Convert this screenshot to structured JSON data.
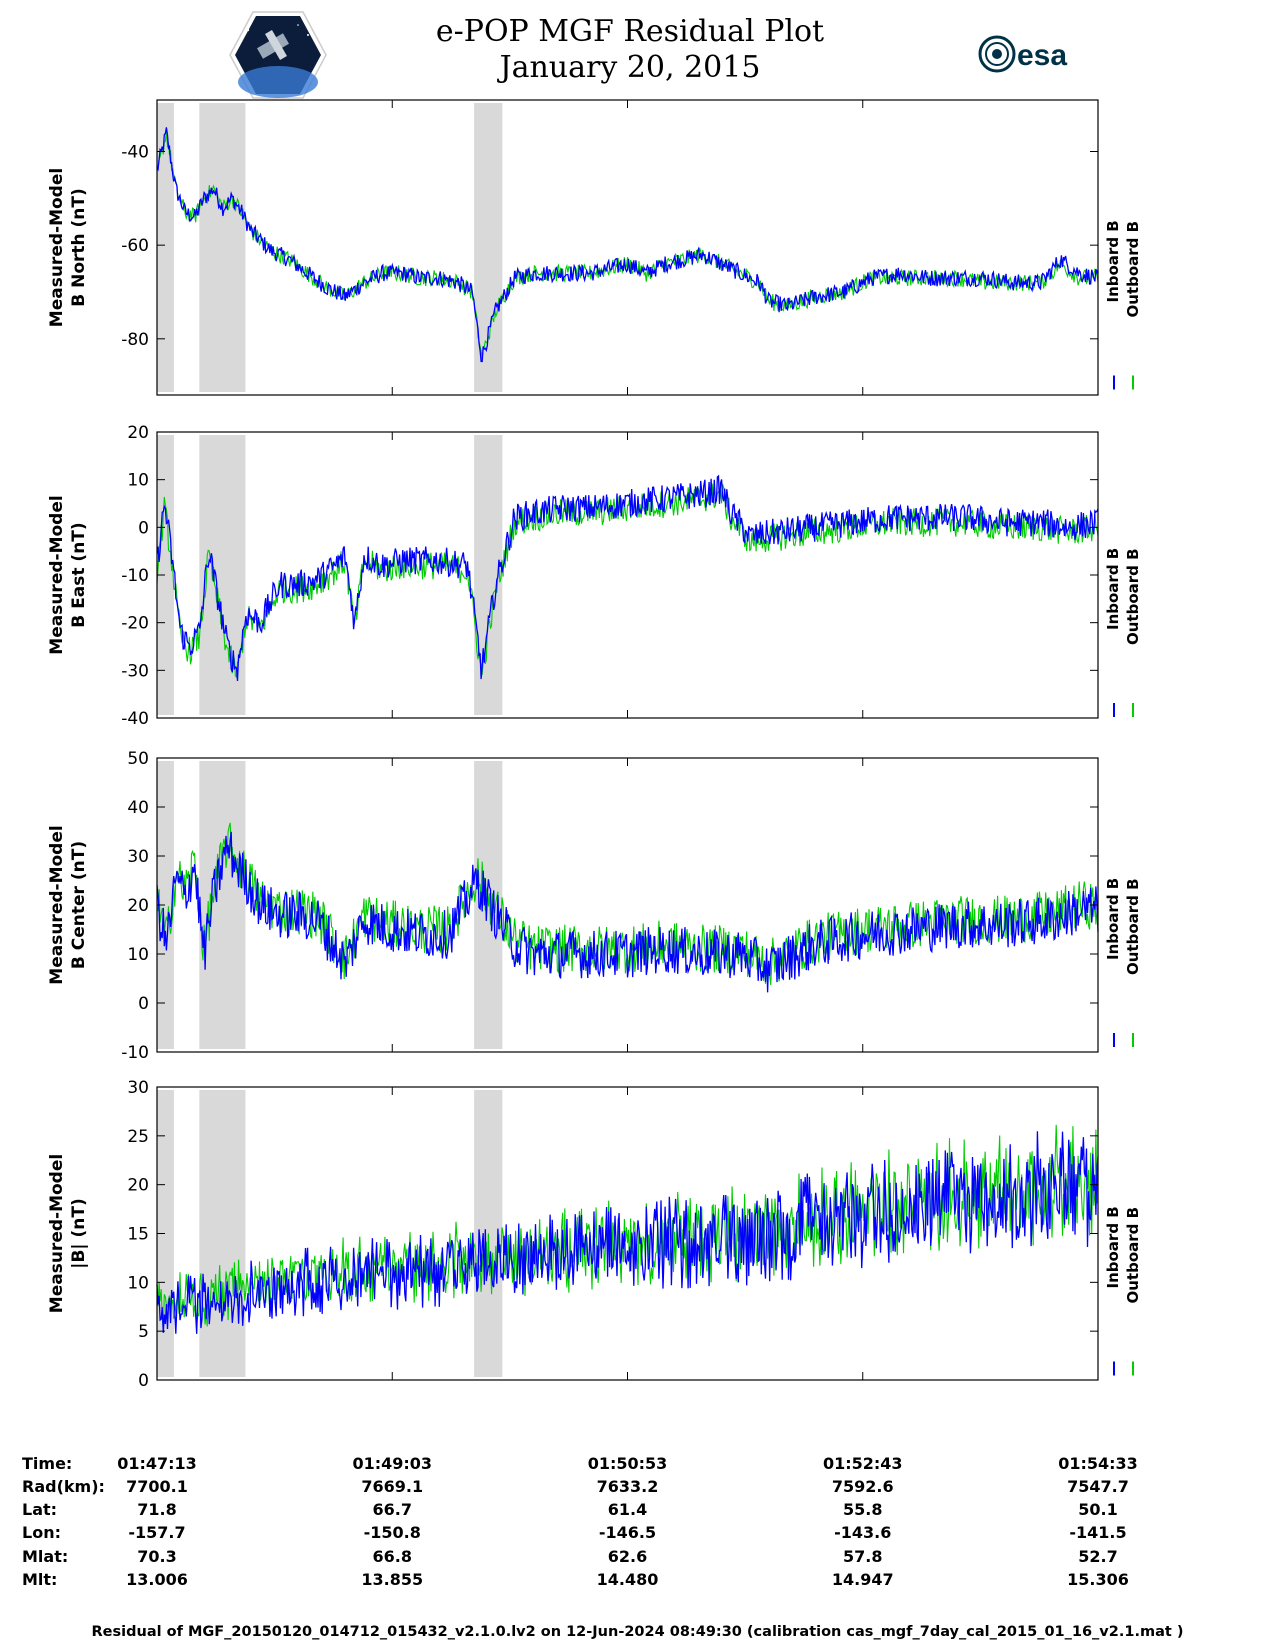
{
  "header": {
    "title_line1": "e-POP MGF Residual Plot",
    "title_line2": "January 20, 2015",
    "logo_left": "cassiope-mission-patch",
    "logo_right_text": "esa"
  },
  "legend": {
    "inboard": "Inboard B",
    "outboard": "Outboard B"
  },
  "colors": {
    "inboard": "#0000ff",
    "outboard": "#00cc00",
    "shade": "#d9d9d9"
  },
  "chart_data": [
    {
      "type": "line",
      "ylabel": [
        "Measured-Model",
        "B North (nT)"
      ],
      "ylim": [
        -92,
        -29
      ],
      "yticks": [
        -80,
        -60,
        -40
      ],
      "shaded_x": [
        [
          0,
          0.018
        ],
        [
          0.045,
          0.094
        ],
        [
          0.337,
          0.367
        ]
      ],
      "series": [
        {
          "name": "Inboard B",
          "x": [
            0.0,
            0.01,
            0.02,
            0.03,
            0.04,
            0.05,
            0.06,
            0.07,
            0.08,
            0.09,
            0.1,
            0.12,
            0.14,
            0.16,
            0.18,
            0.2,
            0.22,
            0.24,
            0.26,
            0.28,
            0.3,
            0.32,
            0.335,
            0.345,
            0.36,
            0.38,
            0.4,
            0.43,
            0.46,
            0.5,
            0.52,
            0.54,
            0.56,
            0.58,
            0.6,
            0.62,
            0.64,
            0.65,
            0.67,
            0.7,
            0.73,
            0.76,
            0.79,
            0.82,
            0.85,
            0.88,
            0.91,
            0.94,
            0.96,
            0.98,
            1.0
          ],
          "y": [
            -44,
            -36,
            -48,
            -53,
            -54,
            -50,
            -48,
            -52,
            -50,
            -53,
            -57,
            -61,
            -63,
            -66,
            -69,
            -71,
            -68,
            -66,
            -66,
            -67,
            -67,
            -68,
            -70,
            -84,
            -74,
            -67,
            -66,
            -66,
            -66,
            -64,
            -66,
            -64,
            -63,
            -62,
            -64,
            -66,
            -68,
            -72,
            -73,
            -71,
            -70,
            -67,
            -66,
            -67,
            -67,
            -67,
            -68,
            -68,
            -63,
            -66,
            -67
          ]
        },
        {
          "name": "Outboard B",
          "x": [
            0.0,
            0.01,
            0.02,
            0.03,
            0.04,
            0.05,
            0.06,
            0.07,
            0.08,
            0.09,
            0.1,
            0.12,
            0.14,
            0.16,
            0.18,
            0.2,
            0.22,
            0.24,
            0.26,
            0.28,
            0.3,
            0.32,
            0.335,
            0.345,
            0.36,
            0.38,
            0.4,
            0.43,
            0.46,
            0.5,
            0.52,
            0.54,
            0.56,
            0.58,
            0.6,
            0.62,
            0.64,
            0.65,
            0.67,
            0.7,
            0.73,
            0.76,
            0.79,
            0.82,
            0.85,
            0.88,
            0.91,
            0.94,
            0.96,
            0.98,
            1.0
          ],
          "y": [
            -45,
            -36,
            -48,
            -53,
            -54,
            -50,
            -48,
            -52,
            -50,
            -53,
            -57,
            -61,
            -63,
            -66,
            -69,
            -71,
            -68,
            -66,
            -66,
            -67,
            -67,
            -68,
            -70,
            -84,
            -74,
            -67,
            -66,
            -66,
            -66,
            -64,
            -66,
            -64,
            -63,
            -62,
            -64,
            -66,
            -68,
            -72,
            -73,
            -71,
            -70,
            -67,
            -67,
            -67,
            -67,
            -68,
            -68,
            -68,
            -64,
            -67,
            -67
          ]
        }
      ]
    },
    {
      "type": "line",
      "ylabel": [
        "Measured-Model",
        "B East (nT)"
      ],
      "ylim": [
        -40,
        20
      ],
      "yticks": [
        -40,
        -30,
        -20,
        -10,
        0,
        10,
        20
      ],
      "shaded_x": [
        [
          0,
          0.018
        ],
        [
          0.045,
          0.094
        ],
        [
          0.337,
          0.367
        ]
      ],
      "series": [
        {
          "name": "Inboard B",
          "x": [
            0.0,
            0.008,
            0.015,
            0.025,
            0.035,
            0.045,
            0.055,
            0.065,
            0.075,
            0.085,
            0.095,
            0.11,
            0.13,
            0.15,
            0.17,
            0.19,
            0.2,
            0.21,
            0.22,
            0.24,
            0.26,
            0.28,
            0.3,
            0.33,
            0.345,
            0.36,
            0.38,
            0.4,
            0.43,
            0.46,
            0.5,
            0.54,
            0.58,
            0.6,
            0.61,
            0.63,
            0.66,
            0.7,
            0.74,
            0.78,
            0.82,
            0.86,
            0.9,
            0.94,
            0.97,
            1.0
          ],
          "y": [
            -8,
            5,
            -5,
            -22,
            -25,
            -22,
            -5,
            -15,
            -25,
            -30,
            -18,
            -20,
            -12,
            -12,
            -11,
            -8,
            -6,
            -20,
            -6,
            -8,
            -7,
            -7,
            -7,
            -8,
            -30,
            -12,
            2,
            3,
            4,
            4,
            5,
            6,
            7,
            8,
            3,
            -2,
            -1,
            0,
            1,
            2,
            2,
            2,
            1,
            1,
            0,
            1
          ]
        },
        {
          "name": "Outboard B",
          "x": [
            0.0,
            0.008,
            0.015,
            0.025,
            0.035,
            0.045,
            0.055,
            0.065,
            0.075,
            0.085,
            0.095,
            0.11,
            0.13,
            0.15,
            0.17,
            0.19,
            0.2,
            0.21,
            0.22,
            0.24,
            0.26,
            0.28,
            0.3,
            0.33,
            0.345,
            0.36,
            0.38,
            0.4,
            0.43,
            0.46,
            0.5,
            0.54,
            0.58,
            0.6,
            0.61,
            0.63,
            0.66,
            0.7,
            0.74,
            0.78,
            0.82,
            0.86,
            0.9,
            0.94,
            0.97,
            1.0
          ],
          "y": [
            -9,
            4,
            -6,
            -23,
            -26,
            -23,
            -6,
            -16,
            -26,
            -31,
            -19,
            -21,
            -13,
            -13,
            -12,
            -9,
            -7,
            -21,
            -7,
            -9,
            -8,
            -8,
            -8,
            -9,
            -31,
            -13,
            1,
            2,
            3,
            3,
            4,
            5,
            6,
            7,
            2,
            -3,
            -2,
            -1,
            0,
            1,
            1,
            1,
            0,
            0,
            -1,
            0
          ]
        }
      ]
    },
    {
      "type": "line",
      "ylabel": [
        "Measured-Model",
        "B Center (nT)"
      ],
      "ylim": [
        -10,
        50
      ],
      "yticks": [
        -10,
        0,
        10,
        20,
        30,
        40,
        50
      ],
      "shaded_x": [
        [
          0,
          0.018
        ],
        [
          0.045,
          0.094
        ],
        [
          0.337,
          0.367
        ]
      ],
      "series": [
        {
          "name": "Inboard B",
          "x": [
            0.0,
            0.01,
            0.02,
            0.03,
            0.04,
            0.05,
            0.06,
            0.075,
            0.085,
            0.095,
            0.11,
            0.13,
            0.15,
            0.17,
            0.2,
            0.22,
            0.25,
            0.28,
            0.31,
            0.34,
            0.36,
            0.38,
            0.4,
            0.43,
            0.46,
            0.5,
            0.54,
            0.58,
            0.6,
            0.62,
            0.65,
            0.7,
            0.75,
            0.8,
            0.85,
            0.9,
            0.95,
            0.98,
            1.0
          ],
          "y": [
            20,
            12,
            25,
            22,
            28,
            10,
            22,
            32,
            28,
            25,
            20,
            18,
            18,
            17,
            8,
            17,
            15,
            14,
            14,
            25,
            18,
            12,
            10,
            10,
            10,
            10,
            11,
            10,
            10,
            10,
            7,
            12,
            14,
            15,
            16,
            16,
            17,
            19,
            19
          ]
        },
        {
          "name": "Outboard B",
          "x": [
            0.0,
            0.01,
            0.02,
            0.03,
            0.04,
            0.05,
            0.06,
            0.075,
            0.085,
            0.095,
            0.11,
            0.13,
            0.15,
            0.17,
            0.2,
            0.22,
            0.25,
            0.28,
            0.31,
            0.34,
            0.36,
            0.38,
            0.4,
            0.43,
            0.46,
            0.5,
            0.54,
            0.58,
            0.6,
            0.62,
            0.65,
            0.7,
            0.75,
            0.8,
            0.85,
            0.9,
            0.95,
            0.98,
            1.0
          ],
          "y": [
            21,
            13,
            26,
            23,
            29,
            11,
            23,
            33,
            29,
            26,
            21,
            19,
            19,
            18,
            9,
            18,
            16,
            15,
            15,
            26,
            19,
            13,
            11,
            11,
            11,
            11,
            12,
            11,
            11,
            11,
            8,
            13,
            15,
            16,
            17,
            17,
            18,
            20,
            20
          ]
        }
      ]
    },
    {
      "type": "line",
      "ylabel": [
        "Measured-Model",
        "|B| (nT)"
      ],
      "ylim": [
        0,
        30
      ],
      "yticks": [
        0,
        5,
        10,
        15,
        20,
        25,
        30
      ],
      "shaded_x": [
        [
          0,
          0.018
        ],
        [
          0.045,
          0.094
        ],
        [
          0.337,
          0.367
        ]
      ],
      "series": [
        {
          "name": "Inboard B",
          "x": [
            0.0,
            0.05,
            0.1,
            0.15,
            0.2,
            0.25,
            0.3,
            0.35,
            0.4,
            0.45,
            0.5,
            0.55,
            0.6,
            0.65,
            0.7,
            0.75,
            0.8,
            0.85,
            0.9,
            0.95,
            1.0
          ],
          "y": [
            7,
            8,
            9,
            10,
            10.5,
            11,
            11.5,
            12,
            12.5,
            13,
            13.5,
            14,
            14.5,
            15,
            16,
            17,
            18,
            18.5,
            19,
            19.5,
            20
          ]
        },
        {
          "name": "Outboard B",
          "x": [
            0.0,
            0.05,
            0.1,
            0.15,
            0.2,
            0.25,
            0.3,
            0.35,
            0.4,
            0.45,
            0.5,
            0.55,
            0.6,
            0.65,
            0.7,
            0.75,
            0.8,
            0.85,
            0.9,
            0.95,
            1.0
          ],
          "y": [
            7.5,
            8.5,
            9.5,
            10.5,
            11,
            11.5,
            12,
            12.5,
            13,
            13.5,
            14,
            14.5,
            15,
            15.5,
            16.5,
            17.5,
            18.5,
            19,
            19.5,
            20,
            20.5
          ]
        }
      ]
    }
  ],
  "info_table": {
    "labels": [
      "Time:",
      "Rad(km):",
      "Lat:",
      "Lon:",
      "Mlat:",
      "Mlt:"
    ],
    "columns": [
      [
        "01:47:13",
        "7700.1",
        "71.8",
        "-157.7",
        "70.3",
        "13.006"
      ],
      [
        "01:49:03",
        "7669.1",
        "66.7",
        "-150.8",
        "66.8",
        "13.855"
      ],
      [
        "01:50:53",
        "7633.2",
        "61.4",
        "-146.5",
        "62.6",
        "14.480"
      ],
      [
        "01:52:43",
        "7592.6",
        "55.8",
        "-143.6",
        "57.8",
        "14.947"
      ],
      [
        "01:54:33",
        "7547.7",
        "50.1",
        "-141.5",
        "52.7",
        "15.306"
      ]
    ]
  },
  "footer": "Residual of MGF_20150120_014712_015432_v2.1.0.lv2 on 12-Jun-2024 08:49:30 (calibration cas_mgf_7day_cal_2015_01_16_v2.1.mat )"
}
